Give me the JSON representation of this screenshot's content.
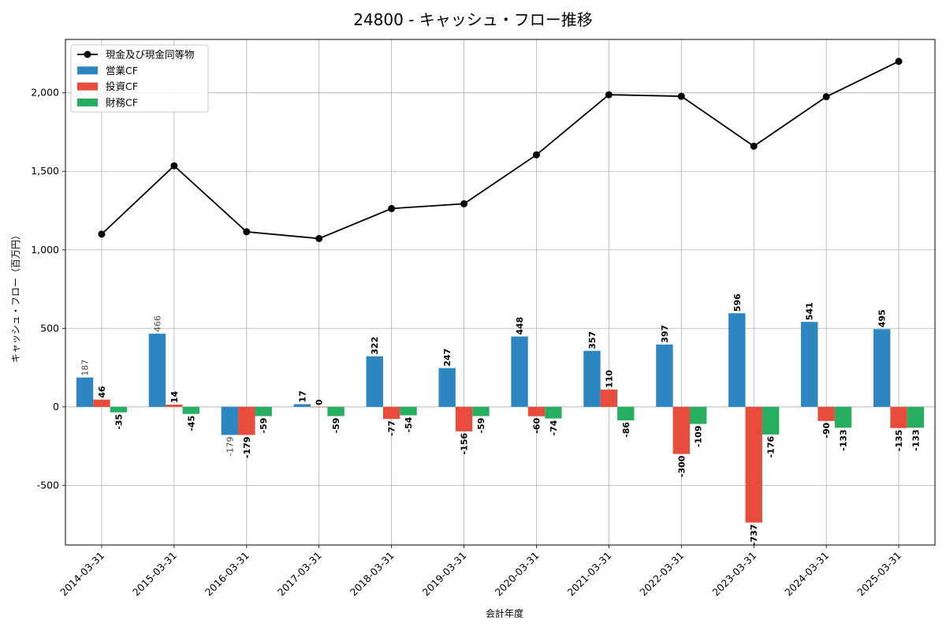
{
  "chart_data": {
    "type": "bar",
    "title": "24800 - キャッシュ・フロー推移",
    "xlabel": "会計年度",
    "ylabel": "キャッシュ・フロー（百万円）",
    "categories": [
      "2014-03-31",
      "2015-03-31",
      "2016-03-31",
      "2017-03-31",
      "2018-03-31",
      "2019-03-31",
      "2020-03-31",
      "2021-03-31",
      "2022-03-31",
      "2023-03-31",
      "2024-03-31",
      "2025-03-31"
    ],
    "ylim": [
      -880,
      2340
    ],
    "yticks": [
      -500,
      0,
      500,
      1000,
      1500,
      2000
    ],
    "ytick_labels": [
      "-500",
      "0",
      "500",
      "1,000",
      "1,500",
      "2,000"
    ],
    "grid": true,
    "legend_position": "top-left",
    "series": [
      {
        "name": "営業CF",
        "kind": "bar",
        "color": "#2e86c1",
        "values": [
          187,
          466,
          -179,
          17,
          322,
          247,
          448,
          357,
          397,
          596,
          541,
          495
        ],
        "labels": [
          "187",
          "466",
          "-179",
          "17",
          "322",
          "247",
          "448",
          "357",
          "397",
          "596",
          "541",
          "495"
        ]
      },
      {
        "name": "投資CF",
        "kind": "bar",
        "color": "#e74c3c",
        "values": [
          46,
          14,
          -179,
          0,
          -77,
          -156,
          -60,
          110,
          -300,
          -737,
          -90,
          -135
        ],
        "labels": [
          "46",
          "14",
          "-179",
          "0",
          "-77",
          "-156",
          "-60",
          "110",
          "-300",
          "-737",
          "-90",
          "-135"
        ]
      },
      {
        "name": "財務CF",
        "kind": "bar",
        "color": "#27ae60",
        "values": [
          -35,
          -45,
          -59,
          -59,
          -54,
          -59,
          -74,
          -86,
          -109,
          -176,
          -133,
          -133
        ],
        "labels": [
          "-35",
          "-45",
          "-59",
          "-59",
          "-54",
          "-59",
          "-74",
          "-86",
          "-109",
          "-176",
          "-133",
          "-133"
        ]
      },
      {
        "name": "現金及び現金同等物",
        "kind": "line",
        "color": "#000000",
        "values": [
          1100,
          1535,
          1115,
          1072,
          1263,
          1293,
          1605,
          1988,
          1978,
          1660,
          1975,
          2200
        ]
      }
    ]
  }
}
